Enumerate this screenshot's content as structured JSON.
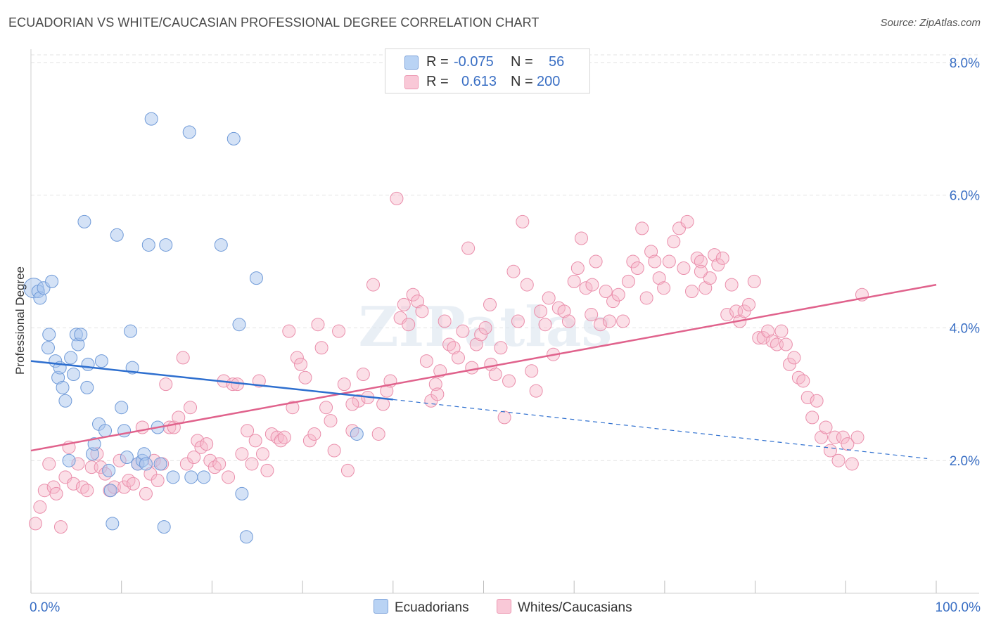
{
  "title": "ECUADORIAN VS WHITE/CAUCASIAN PROFESSIONAL DEGREE CORRELATION CHART",
  "source": "Source: ZipAtlas.com",
  "watermark": "ZIPatlas",
  "legend": {
    "rows": [
      {
        "r_label": "R =",
        "r_value": "-0.075",
        "n_label": "N =",
        "n_value": "56"
      },
      {
        "r_label": "R =",
        "r_value": "0.613",
        "n_label": "N =",
        "n_value": "200"
      }
    ],
    "bottom": [
      "Ecuadorians",
      "Whites/Caucasians"
    ]
  },
  "chart_data": {
    "type": "scatter",
    "ylabel": "Professional Degree",
    "x_tick_labels": [
      "0.0%",
      "100.0%"
    ],
    "y_tick_labels": [
      "2.0%",
      "4.0%",
      "6.0%",
      "8.0%"
    ],
    "y_ticks": [
      2,
      4,
      6,
      8
    ],
    "xlim": [
      0,
      100
    ],
    "ylim": [
      0,
      8.2
    ],
    "colors": {
      "blue_fill": "#a9c6ee",
      "blue_stroke": "#6f9ad8",
      "blue_line": "#2e6fcf",
      "pink_fill": "#f6b7c9",
      "pink_stroke": "#ea8eab",
      "pink_line": "#e0628c",
      "tick_label": "#3a6fc4",
      "grid": "#e3e3e3"
    },
    "series": [
      {
        "name": "Ecuadorians",
        "trend": {
          "x0": 0,
          "y0": 3.5,
          "x1": 40,
          "y1": 2.92,
          "dash_x1": 99,
          "dash_y1": 2.03
        },
        "points": [
          [
            0.3,
            4.6
          ],
          [
            0.8,
            4.55
          ],
          [
            1.0,
            4.45
          ],
          [
            1.4,
            4.6
          ],
          [
            2.3,
            4.7
          ],
          [
            1.9,
            3.7
          ],
          [
            2.0,
            3.9
          ],
          [
            2.7,
            3.5
          ],
          [
            3.0,
            3.25
          ],
          [
            3.2,
            3.4
          ],
          [
            3.5,
            3.1
          ],
          [
            3.8,
            2.9
          ],
          [
            4.2,
            2.0
          ],
          [
            4.4,
            3.55
          ],
          [
            4.7,
            3.3
          ],
          [
            5.0,
            3.9
          ],
          [
            5.2,
            3.75
          ],
          [
            5.5,
            3.9
          ],
          [
            6.2,
            3.1
          ],
          [
            6.3,
            3.45
          ],
          [
            6.8,
            2.1
          ],
          [
            7.0,
            2.25
          ],
          [
            7.5,
            2.55
          ],
          [
            7.8,
            3.5
          ],
          [
            8.2,
            2.45
          ],
          [
            8.6,
            1.85
          ],
          [
            8.8,
            1.55
          ],
          [
            9.0,
            1.05
          ],
          [
            9.5,
            5.4
          ],
          [
            10.0,
            2.8
          ],
          [
            10.3,
            2.45
          ],
          [
            10.6,
            2.05
          ],
          [
            11.0,
            3.95
          ],
          [
            11.2,
            3.4
          ],
          [
            11.8,
            1.95
          ],
          [
            12.3,
            2.0
          ],
          [
            12.5,
            2.1
          ],
          [
            12.7,
            1.95
          ],
          [
            13.0,
            5.25
          ],
          [
            13.3,
            7.15
          ],
          [
            14.0,
            2.5
          ],
          [
            14.3,
            1.95
          ],
          [
            14.7,
            1.0
          ],
          [
            14.9,
            5.25
          ],
          [
            15.7,
            1.75
          ],
          [
            17.5,
            6.95
          ],
          [
            17.7,
            1.75
          ],
          [
            19.1,
            1.75
          ],
          [
            21.0,
            5.25
          ],
          [
            22.4,
            6.85
          ],
          [
            23.0,
            4.05
          ],
          [
            23.3,
            1.5
          ],
          [
            23.8,
            0.85
          ],
          [
            24.9,
            4.75
          ],
          [
            36.0,
            2.4
          ],
          [
            5.9,
            5.6
          ]
        ]
      },
      {
        "name": "Whites/Caucasians",
        "trend": {
          "x0": 0,
          "y0": 2.15,
          "x1": 100,
          "y1": 4.65
        },
        "points": [
          [
            0.5,
            1.05
          ],
          [
            1.0,
            1.3
          ],
          [
            1.5,
            1.55
          ],
          [
            2.0,
            1.95
          ],
          [
            2.5,
            1.6
          ],
          [
            2.8,
            1.5
          ],
          [
            3.3,
            1.0
          ],
          [
            3.8,
            1.75
          ],
          [
            4.2,
            2.2
          ],
          [
            4.7,
            1.65
          ],
          [
            5.2,
            1.95
          ],
          [
            5.7,
            1.6
          ],
          [
            6.2,
            1.55
          ],
          [
            6.7,
            1.9
          ],
          [
            7.3,
            2.1
          ],
          [
            7.7,
            1.9
          ],
          [
            8.2,
            1.8
          ],
          [
            8.7,
            1.55
          ],
          [
            9.2,
            1.6
          ],
          [
            9.8,
            2.0
          ],
          [
            10.3,
            1.6
          ],
          [
            10.8,
            1.7
          ],
          [
            11.3,
            1.65
          ],
          [
            11.8,
            1.95
          ],
          [
            12.3,
            2.5
          ],
          [
            12.7,
            1.5
          ],
          [
            13.2,
            1.8
          ],
          [
            13.6,
            2.0
          ],
          [
            14.0,
            1.7
          ],
          [
            14.5,
            1.95
          ],
          [
            14.9,
            3.15
          ],
          [
            15.3,
            2.5
          ],
          [
            15.8,
            2.5
          ],
          [
            16.3,
            2.65
          ],
          [
            16.8,
            3.55
          ],
          [
            17.2,
            1.95
          ],
          [
            17.6,
            2.8
          ],
          [
            18.0,
            2.05
          ],
          [
            18.4,
            2.3
          ],
          [
            18.8,
            2.2
          ],
          [
            19.4,
            2.25
          ],
          [
            19.8,
            2.0
          ],
          [
            20.3,
            1.9
          ],
          [
            20.8,
            1.95
          ],
          [
            21.3,
            3.2
          ],
          [
            21.8,
            1.75
          ],
          [
            22.3,
            3.15
          ],
          [
            22.8,
            3.15
          ],
          [
            23.3,
            2.1
          ],
          [
            23.9,
            2.45
          ],
          [
            24.4,
            1.95
          ],
          [
            24.8,
            2.3
          ],
          [
            25.2,
            3.2
          ],
          [
            25.6,
            2.1
          ],
          [
            26.1,
            1.85
          ],
          [
            26.6,
            2.4
          ],
          [
            27.2,
            2.35
          ],
          [
            27.6,
            2.3
          ],
          [
            28.0,
            2.35
          ],
          [
            28.5,
            3.95
          ],
          [
            28.9,
            2.8
          ],
          [
            29.4,
            3.55
          ],
          [
            29.8,
            3.45
          ],
          [
            30.3,
            3.25
          ],
          [
            30.8,
            2.3
          ],
          [
            31.3,
            2.4
          ],
          [
            31.7,
            4.05
          ],
          [
            32.1,
            3.7
          ],
          [
            32.6,
            2.8
          ],
          [
            33.1,
            2.6
          ],
          [
            33.5,
            2.15
          ],
          [
            34.0,
            3.95
          ],
          [
            34.6,
            3.15
          ],
          [
            35.0,
            1.85
          ],
          [
            35.5,
            2.45
          ],
          [
            36.2,
            2.9
          ],
          [
            36.7,
            3.3
          ],
          [
            37.2,
            2.95
          ],
          [
            37.8,
            4.65
          ],
          [
            38.4,
            2.4
          ],
          [
            38.9,
            2.85
          ],
          [
            39.3,
            3.05
          ],
          [
            39.7,
            3.2
          ],
          [
            40.4,
            5.95
          ],
          [
            40.8,
            4.15
          ],
          [
            41.2,
            4.35
          ],
          [
            41.7,
            4.05
          ],
          [
            42.2,
            4.5
          ],
          [
            42.7,
            4.4
          ],
          [
            43.2,
            4.25
          ],
          [
            43.7,
            3.5
          ],
          [
            44.2,
            2.9
          ],
          [
            44.7,
            3.15
          ],
          [
            45.2,
            3.35
          ],
          [
            45.7,
            4.1
          ],
          [
            46.2,
            3.75
          ],
          [
            46.7,
            3.7
          ],
          [
            47.2,
            3.55
          ],
          [
            47.7,
            3.95
          ],
          [
            48.3,
            5.2
          ],
          [
            48.7,
            3.4
          ],
          [
            49.2,
            3.75
          ],
          [
            49.7,
            3.9
          ],
          [
            50.2,
            4.0
          ],
          [
            50.8,
            3.45
          ],
          [
            51.3,
            3.3
          ],
          [
            51.9,
            3.7
          ],
          [
            52.3,
            2.65
          ],
          [
            52.8,
            3.2
          ],
          [
            53.3,
            4.85
          ],
          [
            53.8,
            4.1
          ],
          [
            54.3,
            5.6
          ],
          [
            54.8,
            4.65
          ],
          [
            55.3,
            3.35
          ],
          [
            55.8,
            3.05
          ],
          [
            56.3,
            4.25
          ],
          [
            56.8,
            4.05
          ],
          [
            57.2,
            4.45
          ],
          [
            57.7,
            3.6
          ],
          [
            58.3,
            4.3
          ],
          [
            58.9,
            4.25
          ],
          [
            59.4,
            4.1
          ],
          [
            60.0,
            4.7
          ],
          [
            60.4,
            4.9
          ],
          [
            60.8,
            5.35
          ],
          [
            61.3,
            4.6
          ],
          [
            61.9,
            4.2
          ],
          [
            62.4,
            5.0
          ],
          [
            62.9,
            4.05
          ],
          [
            63.5,
            4.55
          ],
          [
            63.9,
            4.1
          ],
          [
            64.3,
            4.4
          ],
          [
            64.9,
            4.5
          ],
          [
            65.4,
            4.1
          ],
          [
            66.0,
            4.7
          ],
          [
            66.5,
            5.0
          ],
          [
            67.0,
            4.9
          ],
          [
            67.5,
            5.5
          ],
          [
            68.0,
            4.45
          ],
          [
            68.5,
            5.15
          ],
          [
            68.9,
            5.0
          ],
          [
            69.4,
            4.75
          ],
          [
            69.9,
            4.6
          ],
          [
            70.5,
            5.0
          ],
          [
            71.0,
            5.3
          ],
          [
            71.6,
            5.5
          ],
          [
            72.1,
            4.9
          ],
          [
            72.5,
            5.6
          ],
          [
            73.0,
            4.55
          ],
          [
            73.6,
            5.05
          ],
          [
            74.0,
            5.0
          ],
          [
            74.5,
            4.6
          ],
          [
            75.0,
            4.75
          ],
          [
            75.5,
            5.1
          ],
          [
            75.9,
            4.95
          ],
          [
            76.4,
            5.05
          ],
          [
            76.9,
            4.2
          ],
          [
            77.4,
            4.65
          ],
          [
            77.9,
            4.25
          ],
          [
            78.3,
            4.1
          ],
          [
            78.8,
            4.25
          ],
          [
            79.3,
            4.35
          ],
          [
            79.9,
            4.7
          ],
          [
            80.4,
            3.85
          ],
          [
            80.9,
            3.85
          ],
          [
            81.4,
            3.95
          ],
          [
            81.9,
            3.8
          ],
          [
            82.4,
            3.75
          ],
          [
            82.9,
            3.95
          ],
          [
            83.4,
            3.75
          ],
          [
            83.8,
            3.45
          ],
          [
            84.3,
            3.55
          ],
          [
            84.8,
            3.25
          ],
          [
            85.3,
            3.2
          ],
          [
            85.8,
            2.95
          ],
          [
            86.3,
            2.65
          ],
          [
            86.8,
            2.9
          ],
          [
            87.3,
            2.35
          ],
          [
            87.8,
            2.5
          ],
          [
            88.3,
            2.15
          ],
          [
            88.8,
            2.35
          ],
          [
            89.2,
            2.0
          ],
          [
            89.7,
            2.35
          ],
          [
            90.2,
            2.25
          ],
          [
            90.7,
            1.95
          ],
          [
            91.3,
            2.35
          ],
          [
            91.8,
            4.5
          ],
          [
            35.5,
            2.85
          ],
          [
            44.9,
            3.0
          ],
          [
            50.7,
            4.35
          ],
          [
            62.0,
            4.65
          ],
          [
            74.0,
            4.85
          ]
        ]
      }
    ]
  }
}
